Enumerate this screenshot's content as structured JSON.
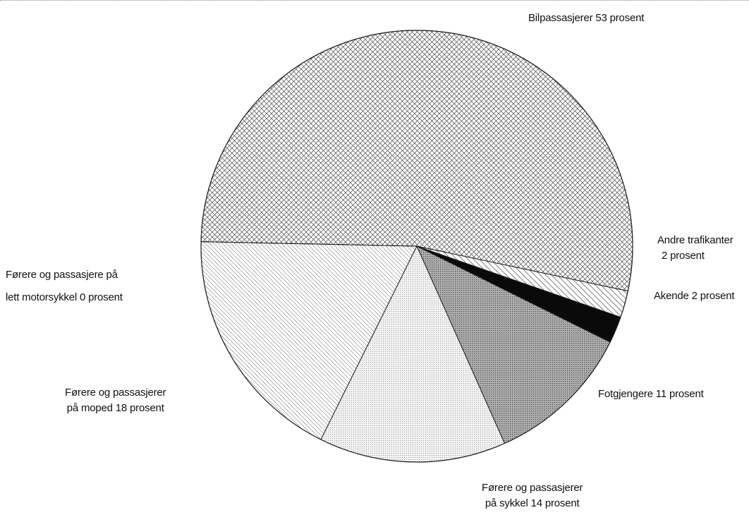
{
  "chart_data": {
    "type": "pie",
    "slices": [
      {
        "label_lines": [
          "Bilpassasjerer 53 prosent"
        ],
        "value": 53,
        "pattern": "crosshatch"
      },
      {
        "label_lines": [
          "Andre trafikanter",
          "2 prosent"
        ],
        "value": 2,
        "pattern": "diagonal-light"
      },
      {
        "label_lines": [
          "Akende 2 prosent"
        ],
        "value": 2,
        "pattern": "solid-black"
      },
      {
        "label_lines": [
          "Fotgjengere 11 prosent"
        ],
        "value": 11,
        "pattern": "dense-dots"
      },
      {
        "label_lines": [
          "Førere og passasjerer",
          "på sykkel 14 prosent"
        ],
        "value": 14,
        "pattern": "light-dots"
      },
      {
        "label_lines": [
          "Førere og passasjerer",
          "på moped 18 prosent"
        ],
        "value": 18,
        "pattern": "diagonal"
      },
      {
        "label_lines": [
          "Førere og passasjere på",
          "lett motorsykkel 0 prosent"
        ],
        "value": 0,
        "pattern": "none"
      }
    ],
    "colors": {
      "ink": "#111111",
      "outline": "#222222"
    }
  }
}
